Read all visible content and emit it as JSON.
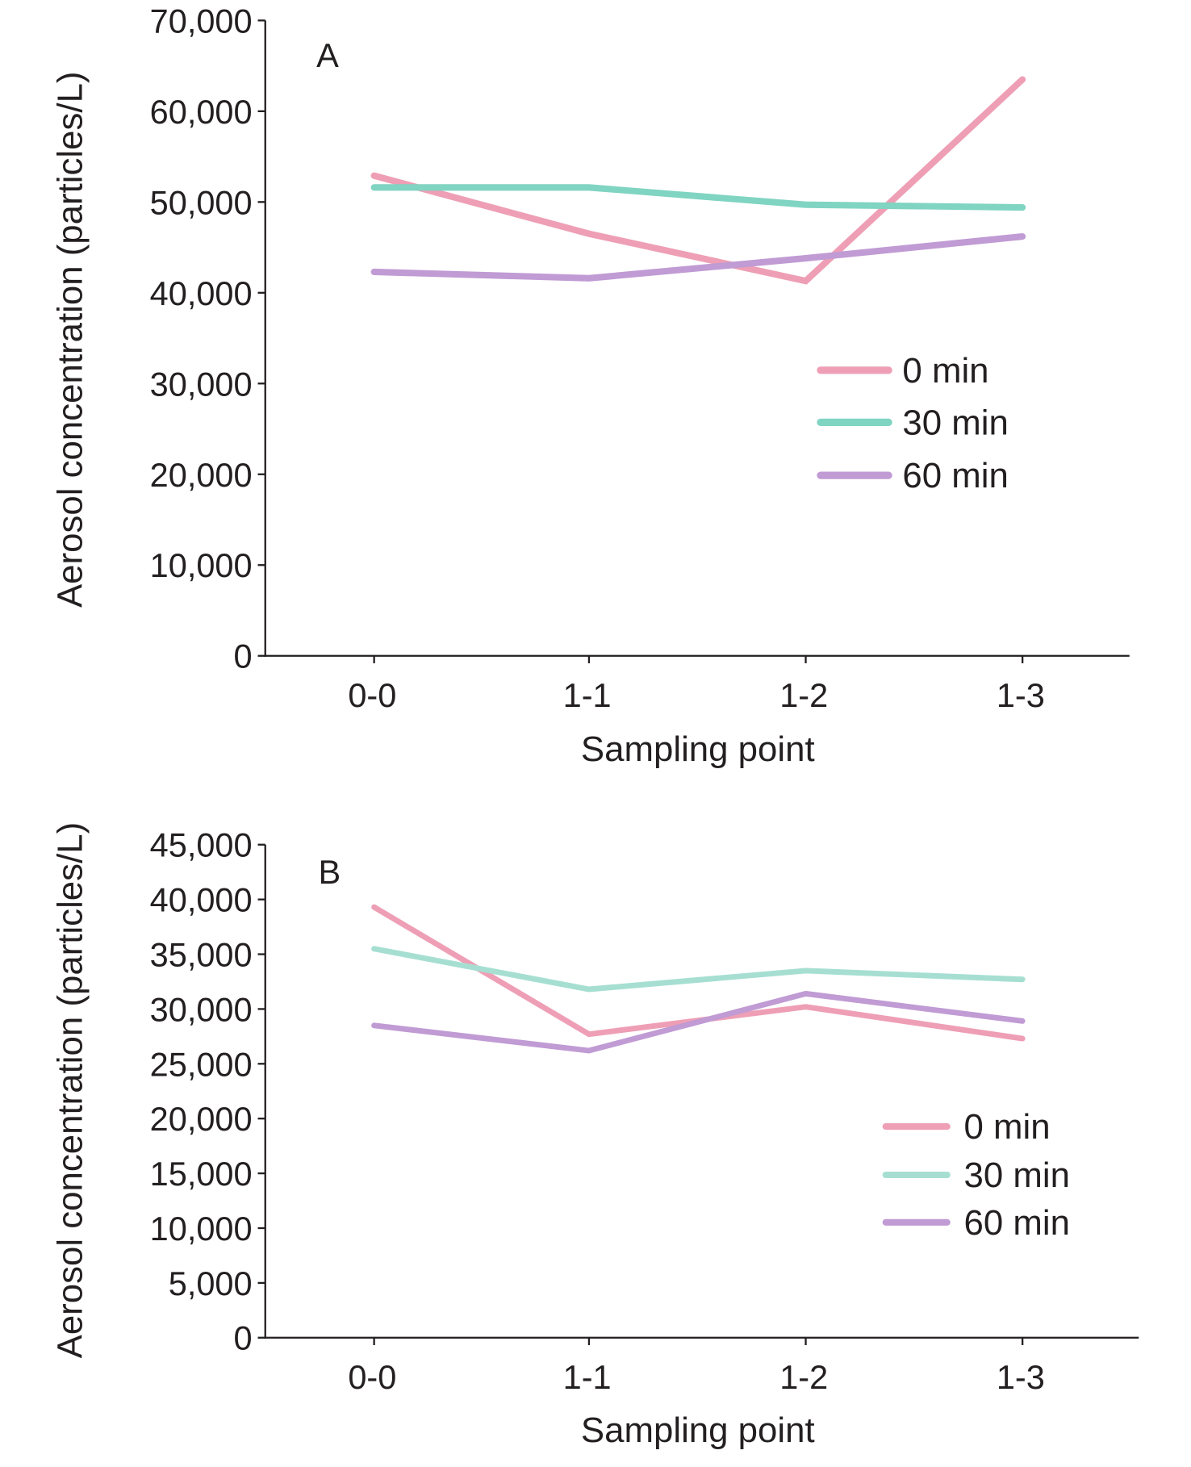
{
  "chart_data": [
    {
      "type": "line",
      "panel_label": "A",
      "xlabel": "Sampling point",
      "ylabel": "Aerosol concentration (particles/L)",
      "categories": [
        "0-0",
        "1-1",
        "1-2",
        "1-3"
      ],
      "ylim": [
        0,
        70000
      ],
      "yticks": [
        0,
        10000,
        20000,
        30000,
        40000,
        50000,
        60000,
        70000
      ],
      "ytick_labels": [
        "0",
        "10,000",
        "20,000",
        "30,000",
        "40,000",
        "50,000",
        "60,000",
        "70,000"
      ],
      "grid": false,
      "legend_position": "right-middle",
      "series": [
        {
          "name": "0 min",
          "color": "#EE9FB5",
          "values": [
            52900,
            46500,
            41300,
            63500
          ]
        },
        {
          "name": "30 min",
          "color": "#80D4C2",
          "values": [
            51600,
            51600,
            49700,
            49400
          ]
        },
        {
          "name": "60 min",
          "color": "#C09BD4",
          "values": [
            42300,
            41600,
            43800,
            46200
          ]
        }
      ]
    },
    {
      "type": "line",
      "panel_label": "B",
      "xlabel": "Sampling point",
      "ylabel": "Aerosol concentration (particles/L)",
      "categories": [
        "0-0",
        "1-1",
        "1-2",
        "1-3"
      ],
      "ylim": [
        0,
        45000
      ],
      "yticks": [
        0,
        5000,
        10000,
        15000,
        20000,
        25000,
        30000,
        35000,
        40000,
        45000
      ],
      "ytick_labels": [
        "0",
        "5,000",
        "10,000",
        "15,000",
        "20,000",
        "25,000",
        "30,000",
        "35,000",
        "40,000",
        "45,000"
      ],
      "grid": false,
      "legend_position": "right-middle",
      "series": [
        {
          "name": "0 min",
          "color": "#EE9FB5",
          "values": [
            39300,
            27700,
            30200,
            27300
          ]
        },
        {
          "name": "30 min",
          "color": "#A6DFD2",
          "values": [
            35500,
            31800,
            33500,
            32700
          ]
        },
        {
          "name": "60 min",
          "color": "#C09BD4",
          "values": [
            28500,
            26200,
            31400,
            28900
          ]
        }
      ]
    }
  ]
}
